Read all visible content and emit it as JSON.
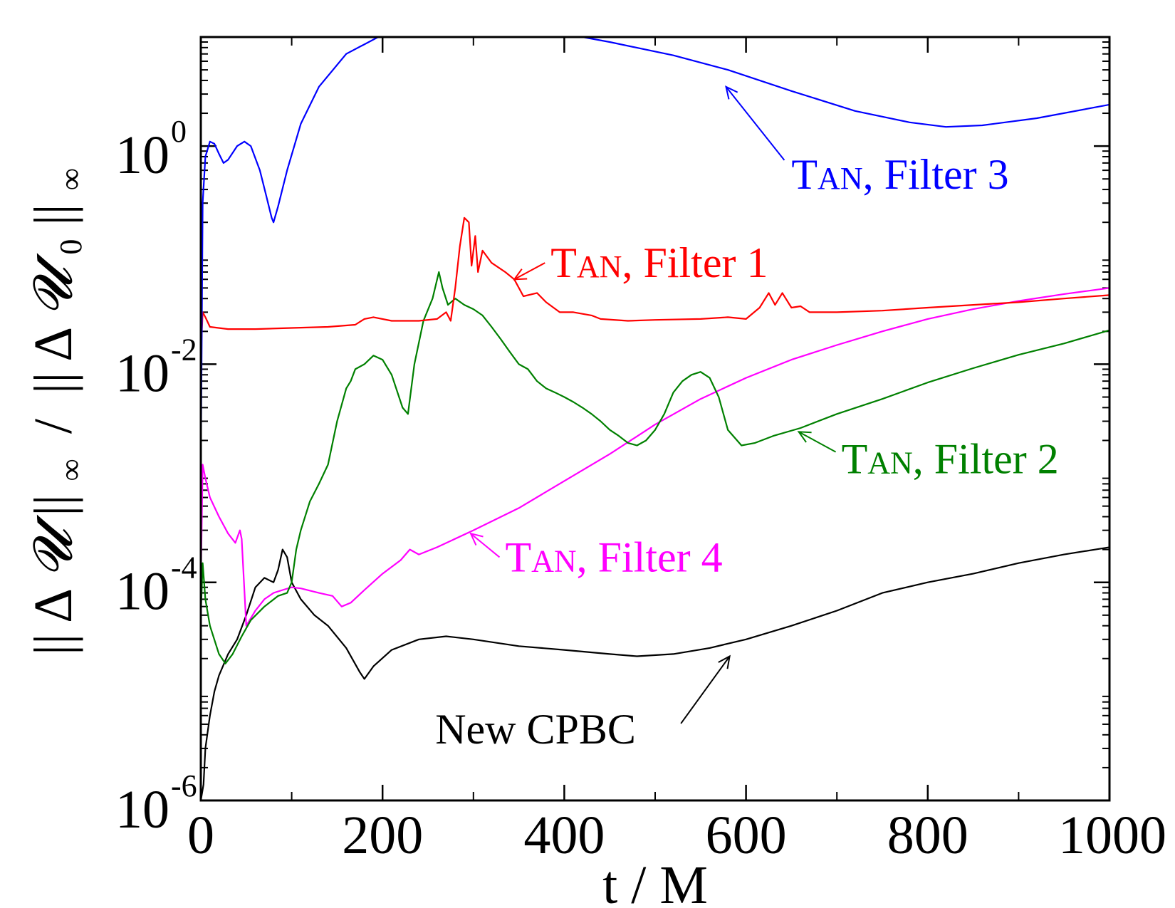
{
  "chart_data": {
    "type": "line",
    "title": "",
    "xlabel": "t / M",
    "ylabel": "|| ΔU ||∞ / || ΔU0 ||∞",
    "ylabel_parts": {
      "norm_bars": "||",
      "delta": "Δ",
      "var": "𝓤",
      "inf": "∞",
      "slash": "/",
      "sub0": "0"
    },
    "y_scale": "log",
    "xlim": [
      0,
      1000
    ],
    "ylim": [
      1e-06,
      10
    ],
    "x_ticks": [
      0,
      200,
      400,
      600,
      800,
      1000
    ],
    "x_tick_labels": [
      "0",
      "200",
      "400",
      "600",
      "800",
      "1000"
    ],
    "y_ticks": [
      1e-06,
      0.0001,
      0.01,
      1
    ],
    "y_tick_labels": [
      {
        "base": "10",
        "exp": "-6"
      },
      {
        "base": "10",
        "exp": "-4"
      },
      {
        "base": "10",
        "exp": "-2"
      },
      {
        "base": "10",
        "exp": "0"
      }
    ],
    "grid": false,
    "legend": "none (inline labels with arrows)",
    "series": [
      {
        "name": "TAN, Filter 3",
        "label_parts": {
          "sc_first": "T",
          "sc_rest": "AN",
          "rest": ", Filter 3"
        },
        "color": "#0000ff",
        "points": [
          [
            0,
            0.001
          ],
          [
            2,
            0.3
          ],
          [
            5,
            0.8
          ],
          [
            10,
            1.1
          ],
          [
            15,
            1.05
          ],
          [
            20,
            0.85
          ],
          [
            25,
            0.7
          ],
          [
            30,
            0.75
          ],
          [
            40,
            1.0
          ],
          [
            48,
            1.1
          ],
          [
            55,
            1.0
          ],
          [
            65,
            0.6
          ],
          [
            72,
            0.35
          ],
          [
            78,
            0.22
          ],
          [
            80,
            0.2
          ],
          [
            85,
            0.28
          ],
          [
            95,
            0.6
          ],
          [
            110,
            1.6
          ],
          [
            130,
            3.5
          ],
          [
            160,
            7.0
          ],
          [
            200,
            10.5
          ],
          [
            240,
            12.5
          ],
          [
            280,
            13.0
          ],
          [
            320,
            12.8
          ],
          [
            380,
            11.5
          ],
          [
            450,
            9.0
          ],
          [
            520,
            6.8
          ],
          [
            580,
            5.0
          ],
          [
            650,
            3.2
          ],
          [
            720,
            2.1
          ],
          [
            780,
            1.65
          ],
          [
            820,
            1.5
          ],
          [
            860,
            1.55
          ],
          [
            920,
            1.8
          ],
          [
            1000,
            2.4
          ]
        ]
      },
      {
        "name": "TAN, Filter 1",
        "label_parts": {
          "sc_first": "T",
          "sc_rest": "AN",
          "rest": ", Filter 1"
        },
        "color": "#ff0000",
        "points": [
          [
            0,
            0.012
          ],
          [
            2,
            0.03
          ],
          [
            5,
            0.027
          ],
          [
            10,
            0.022
          ],
          [
            30,
            0.021
          ],
          [
            60,
            0.021
          ],
          [
            100,
            0.0215
          ],
          [
            140,
            0.022
          ],
          [
            170,
            0.023
          ],
          [
            180,
            0.026
          ],
          [
            190,
            0.027
          ],
          [
            210,
            0.025
          ],
          [
            240,
            0.025
          ],
          [
            260,
            0.026
          ],
          [
            270,
            0.03
          ],
          [
            275,
            0.025
          ],
          [
            280,
            0.05
          ],
          [
            285,
            0.12
          ],
          [
            290,
            0.22
          ],
          [
            295,
            0.2
          ],
          [
            298,
            0.08
          ],
          [
            302,
            0.15
          ],
          [
            305,
            0.07
          ],
          [
            310,
            0.11
          ],
          [
            320,
            0.085
          ],
          [
            335,
            0.07
          ],
          [
            345,
            0.06
          ],
          [
            355,
            0.042
          ],
          [
            370,
            0.045
          ],
          [
            380,
            0.037
          ],
          [
            395,
            0.03
          ],
          [
            410,
            0.03
          ],
          [
            430,
            0.028
          ],
          [
            440,
            0.026
          ],
          [
            470,
            0.025
          ],
          [
            500,
            0.0255
          ],
          [
            550,
            0.026
          ],
          [
            580,
            0.027
          ],
          [
            600,
            0.026
          ],
          [
            615,
            0.033
          ],
          [
            625,
            0.045
          ],
          [
            632,
            0.035
          ],
          [
            640,
            0.045
          ],
          [
            650,
            0.033
          ],
          [
            660,
            0.034
          ],
          [
            670,
            0.03
          ],
          [
            700,
            0.03
          ],
          [
            750,
            0.031
          ],
          [
            800,
            0.033
          ],
          [
            850,
            0.035
          ],
          [
            900,
            0.037
          ],
          [
            950,
            0.04
          ],
          [
            1000,
            0.043
          ]
        ]
      },
      {
        "name": "TAN, Filter 2",
        "label_parts": {
          "sc_first": "T",
          "sc_rest": "AN",
          "rest": ", Filter 2"
        },
        "color": "#008000",
        "points": [
          [
            0,
            5e-05
          ],
          [
            2,
            0.00015
          ],
          [
            5,
            7e-05
          ],
          [
            10,
            4e-05
          ],
          [
            20,
            2.2e-05
          ],
          [
            27,
            1.8e-05
          ],
          [
            35,
            2.2e-05
          ],
          [
            45,
            3.2e-05
          ],
          [
            55,
            4.5e-05
          ],
          [
            70,
            6e-05
          ],
          [
            85,
            7.5e-05
          ],
          [
            95,
            8e-05
          ],
          [
            100,
            0.0001
          ],
          [
            105,
            0.0002
          ],
          [
            110,
            0.0003
          ],
          [
            120,
            0.00055
          ],
          [
            130,
            0.0008
          ],
          [
            140,
            0.0012
          ],
          [
            150,
            0.003
          ],
          [
            160,
            0.006
          ],
          [
            165,
            0.007
          ],
          [
            170,
            0.009
          ],
          [
            180,
            0.01
          ],
          [
            190,
            0.012
          ],
          [
            200,
            0.011
          ],
          [
            210,
            0.008
          ],
          [
            222,
            0.004
          ],
          [
            228,
            0.0035
          ],
          [
            235,
            0.01
          ],
          [
            245,
            0.025
          ],
          [
            255,
            0.04
          ],
          [
            262,
            0.07
          ],
          [
            266,
            0.05
          ],
          [
            272,
            0.035
          ],
          [
            280,
            0.04
          ],
          [
            290,
            0.035
          ],
          [
            300,
            0.032
          ],
          [
            310,
            0.028
          ],
          [
            320,
            0.022
          ],
          [
            330,
            0.017
          ],
          [
            340,
            0.013
          ],
          [
            350,
            0.01
          ],
          [
            360,
            0.009
          ],
          [
            370,
            0.007
          ],
          [
            380,
            0.006
          ],
          [
            390,
            0.0055
          ],
          [
            400,
            0.005
          ],
          [
            410,
            0.0045
          ],
          [
            420,
            0.004
          ],
          [
            430,
            0.0035
          ],
          [
            440,
            0.003
          ],
          [
            450,
            0.0025
          ],
          [
            460,
            0.0022
          ],
          [
            470,
            0.0019
          ],
          [
            480,
            0.0018
          ],
          [
            490,
            0.002
          ],
          [
            500,
            0.0025
          ],
          [
            510,
            0.0035
          ],
          [
            520,
            0.0055
          ],
          [
            530,
            0.007
          ],
          [
            540,
            0.008
          ],
          [
            550,
            0.0085
          ],
          [
            560,
            0.0075
          ],
          [
            570,
            0.005
          ],
          [
            580,
            0.0025
          ],
          [
            595,
            0.0018
          ],
          [
            610,
            0.0019
          ],
          [
            630,
            0.0022
          ],
          [
            660,
            0.0026
          ],
          [
            700,
            0.0035
          ],
          [
            750,
            0.0048
          ],
          [
            800,
            0.0068
          ],
          [
            850,
            0.0092
          ],
          [
            900,
            0.0122
          ],
          [
            950,
            0.0155
          ],
          [
            1000,
            0.0205
          ]
        ]
      },
      {
        "name": "TAN, Filter 4",
        "label_parts": {
          "sc_first": "T",
          "sc_rest": "AN",
          "rest": ", Filter 4"
        },
        "color": "#ff00ff",
        "points": [
          [
            0,
            0.0001
          ],
          [
            2,
            0.0012
          ],
          [
            5,
            0.0009
          ],
          [
            10,
            0.0006
          ],
          [
            20,
            0.0004
          ],
          [
            30,
            0.00028
          ],
          [
            38,
            0.00023
          ],
          [
            43,
            0.0003
          ],
          [
            45,
            0.00025
          ],
          [
            50,
            4e-05
          ],
          [
            60,
            5.5e-05
          ],
          [
            70,
            7e-05
          ],
          [
            80,
            8e-05
          ],
          [
            90,
            8.5e-05
          ],
          [
            100,
            9e-05
          ],
          [
            110,
            8.8e-05
          ],
          [
            130,
            8e-05
          ],
          [
            145,
            7.5e-05
          ],
          [
            155,
            6e-05
          ],
          [
            165,
            6.5e-05
          ],
          [
            180,
            8.5e-05
          ],
          [
            200,
            0.00012
          ],
          [
            220,
            0.00016
          ],
          [
            230,
            0.0002
          ],
          [
            240,
            0.00018
          ],
          [
            260,
            0.00021
          ],
          [
            300,
            0.0003
          ],
          [
            350,
            0.00048
          ],
          [
            400,
            0.00085
          ],
          [
            450,
            0.0015
          ],
          [
            500,
            0.0028
          ],
          [
            550,
            0.0048
          ],
          [
            600,
            0.0075
          ],
          [
            650,
            0.011
          ],
          [
            700,
            0.015
          ],
          [
            750,
            0.02
          ],
          [
            800,
            0.026
          ],
          [
            850,
            0.032
          ],
          [
            900,
            0.038
          ],
          [
            950,
            0.044
          ],
          [
            1000,
            0.05
          ]
        ]
      },
      {
        "name": "New CPBC",
        "label_parts": {
          "sc_first": "",
          "sc_rest": "",
          "rest": "New CPBC"
        },
        "color": "#000000",
        "points": [
          [
            0,
            1e-06
          ],
          [
            3,
            1.4e-06
          ],
          [
            5,
            3e-06
          ],
          [
            10,
            6e-06
          ],
          [
            15,
            1e-05
          ],
          [
            20,
            1.4e-05
          ],
          [
            30,
            2.2e-05
          ],
          [
            40,
            3e-05
          ],
          [
            50,
            5e-05
          ],
          [
            60,
            9e-05
          ],
          [
            70,
            0.00011
          ],
          [
            80,
            0.0001
          ],
          [
            85,
            0.00013
          ],
          [
            90,
            0.0002
          ],
          [
            95,
            0.00017
          ],
          [
            100,
            0.0001
          ],
          [
            110,
            7e-05
          ],
          [
            125,
            5e-05
          ],
          [
            140,
            4e-05
          ],
          [
            160,
            2.5e-05
          ],
          [
            175,
            1.5e-05
          ],
          [
            180,
            1.3e-05
          ],
          [
            190,
            1.7e-05
          ],
          [
            210,
            2.4e-05
          ],
          [
            240,
            3e-05
          ],
          [
            270,
            3.2e-05
          ],
          [
            300,
            3e-05
          ],
          [
            350,
            2.6e-05
          ],
          [
            400,
            2.4e-05
          ],
          [
            450,
            2.2e-05
          ],
          [
            480,
            2.1e-05
          ],
          [
            520,
            2.2e-05
          ],
          [
            560,
            2.5e-05
          ],
          [
            600,
            3e-05
          ],
          [
            650,
            4e-05
          ],
          [
            700,
            5.5e-05
          ],
          [
            750,
            8e-05
          ],
          [
            800,
            0.0001
          ],
          [
            850,
            0.00012
          ],
          [
            900,
            0.00015
          ],
          [
            950,
            0.00018
          ],
          [
            1000,
            0.00021
          ]
        ]
      }
    ],
    "annotations": [
      {
        "series": 0,
        "text_x": 650,
        "text_y": 0.55,
        "arrow_x": 578,
        "arrow_y": 3.5
      },
      {
        "series": 1,
        "text_x": 385,
        "text_y": 0.085,
        "arrow_x": 345,
        "arrow_y": 0.06
      },
      {
        "series": 2,
        "text_x": 705,
        "text_y": 0.00135,
        "arrow_x": 658,
        "arrow_y": 0.0024
      },
      {
        "series": 3,
        "text_x": 335,
        "text_y": 0.00017,
        "arrow_x": 297,
        "arrow_y": 0.00028
      },
      {
        "series": 4,
        "text_x": 258,
        "text_y": 4.5e-06,
        "arrow_x": 582,
        "arrow_y": 2.1e-05
      }
    ]
  }
}
